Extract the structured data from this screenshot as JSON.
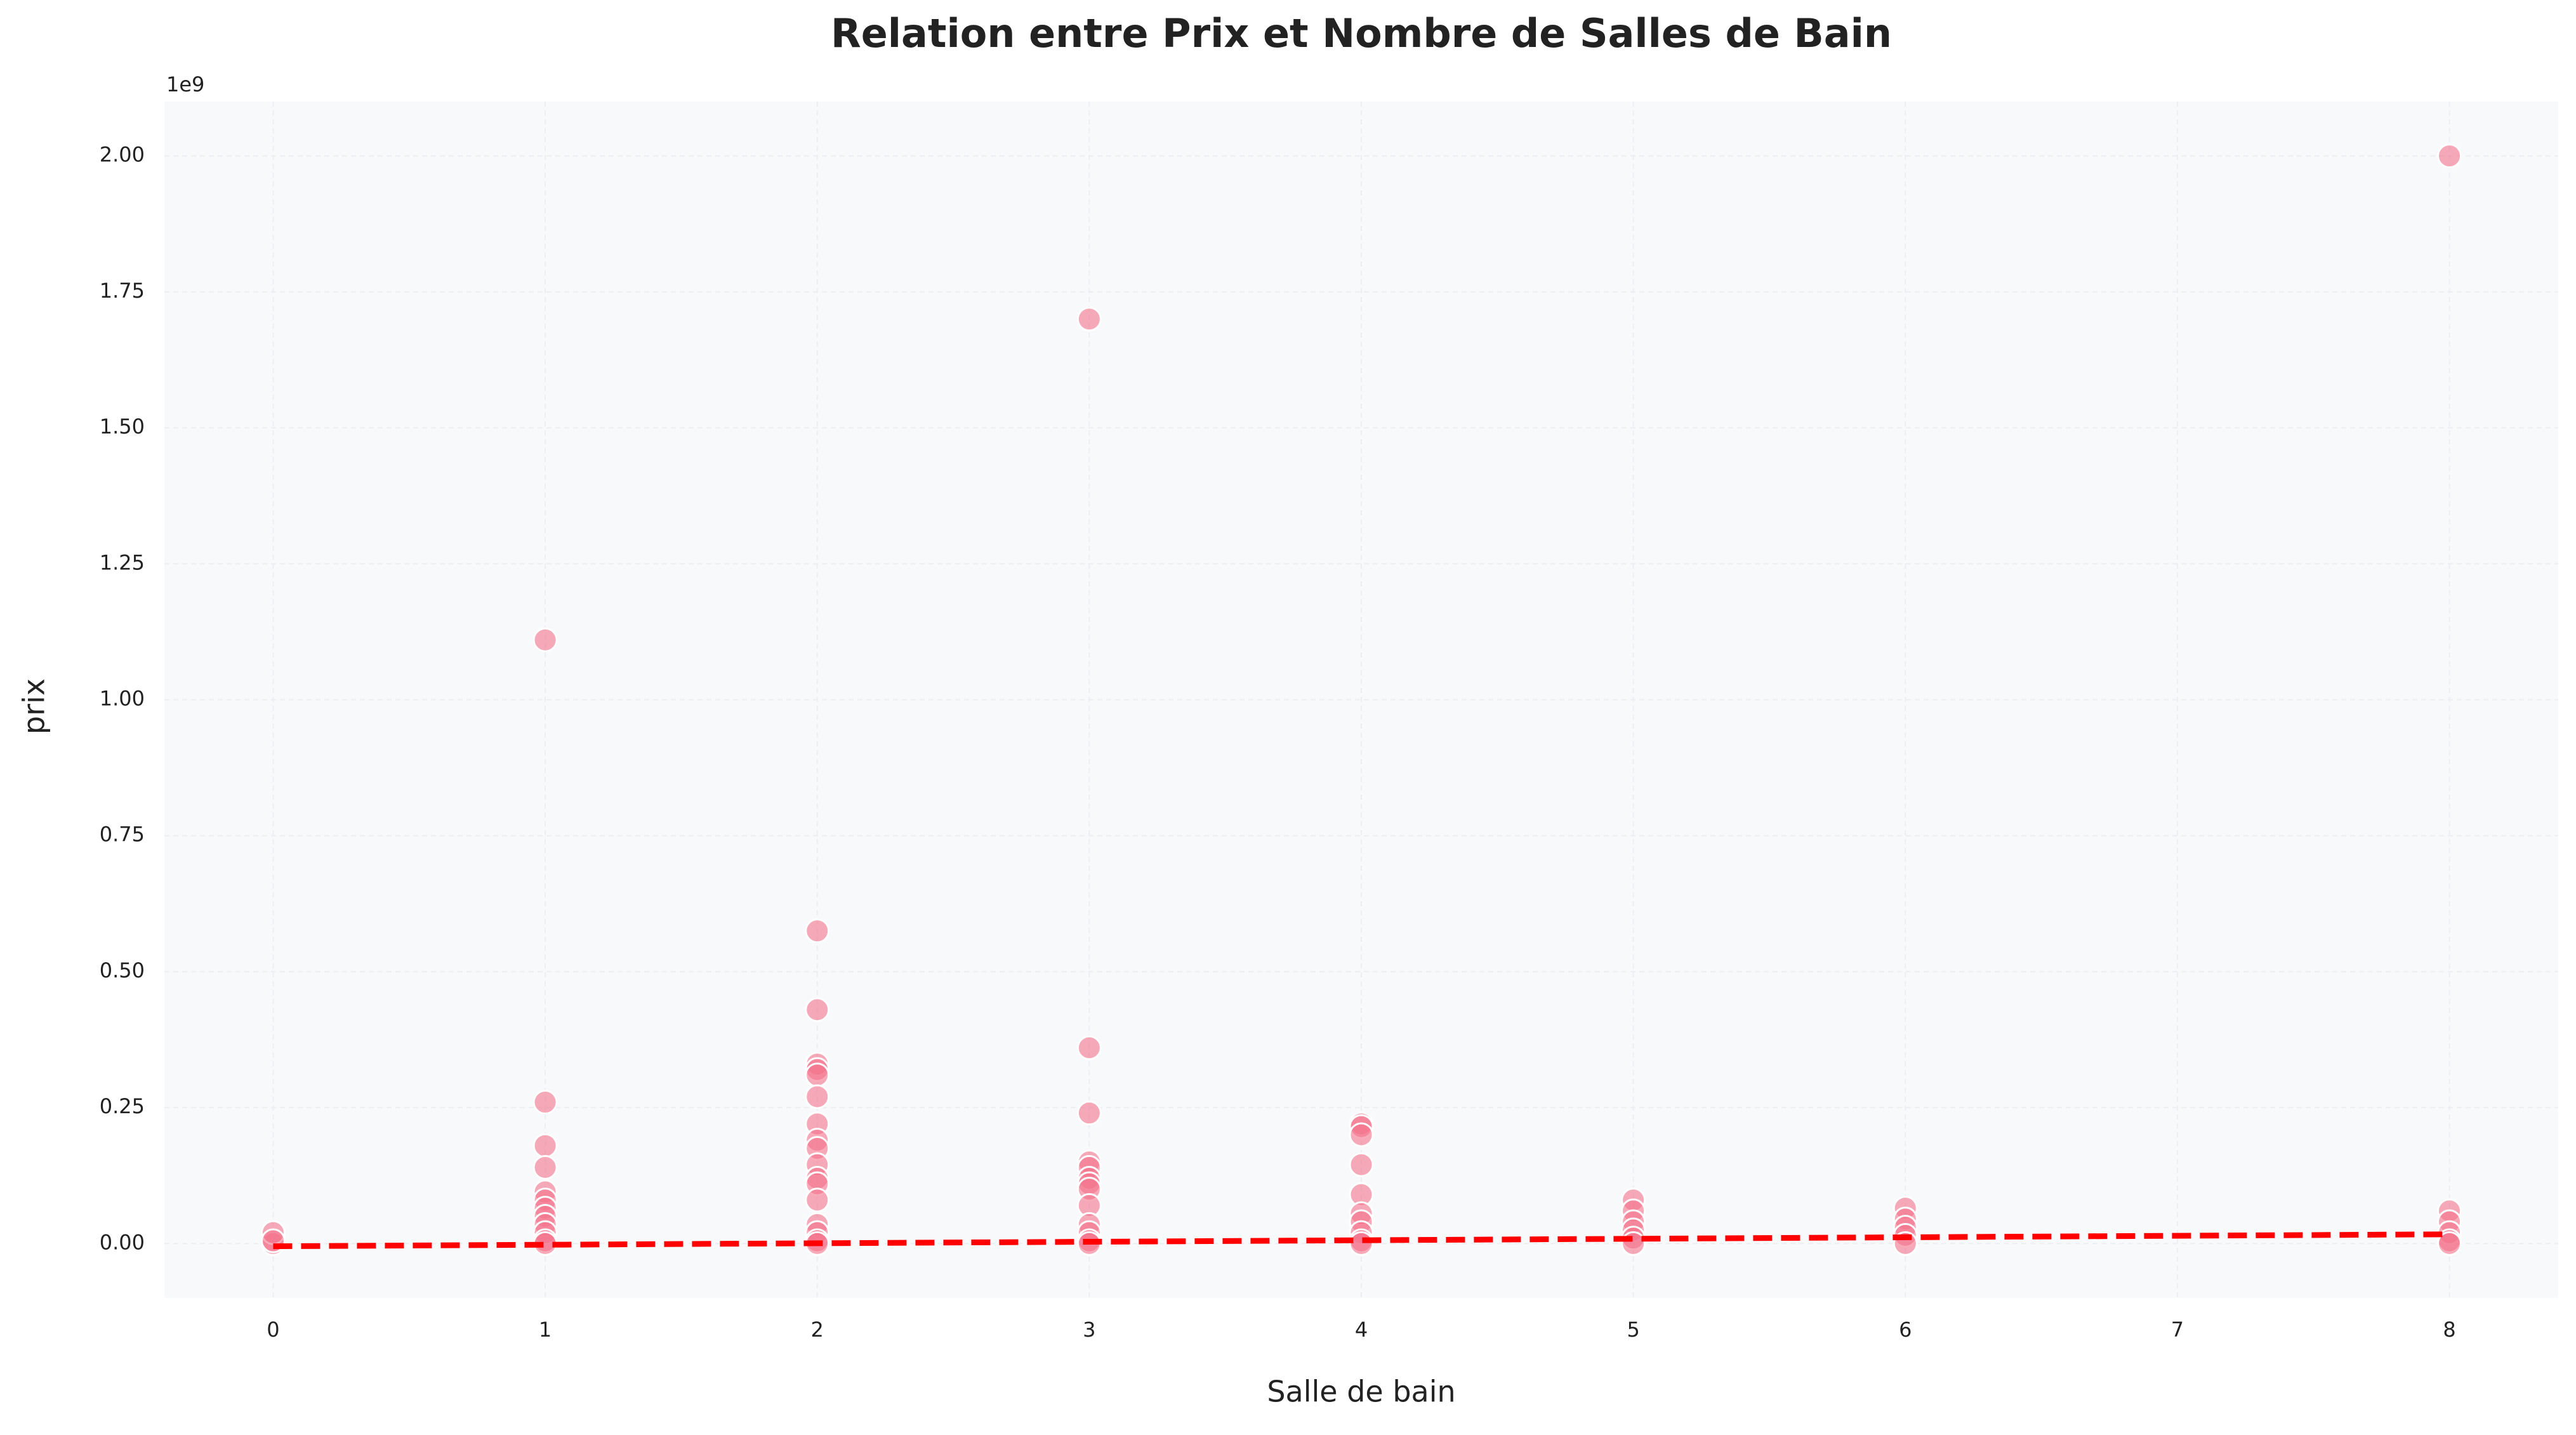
{
  "chart_data": {
    "type": "scatter",
    "title": "Relation entre Prix et Nombre de Salles de Bain",
    "x_label": "Salle de bain",
    "y_label": "prix",
    "y_offset_label": "1e9",
    "x": [
      0,
      0,
      0,
      1,
      1,
      1,
      1,
      1,
      1,
      1,
      1,
      1,
      1,
      1,
      1,
      2,
      2,
      2,
      2,
      2,
      2,
      2,
      2,
      2,
      2,
      2,
      2,
      2,
      2,
      2,
      2,
      2,
      3,
      3,
      3,
      3,
      3,
      3,
      3,
      3,
      3,
      3,
      3,
      3,
      3,
      4,
      4,
      4,
      4,
      4,
      4,
      4,
      4,
      4,
      4,
      5,
      5,
      5,
      5,
      5,
      5,
      6,
      6,
      6,
      6,
      6,
      8,
      8,
      8,
      8,
      8,
      8
    ],
    "y": [
      0,
      0.02,
      0.005,
      1.11,
      0.26,
      0.18,
      0.14,
      0.095,
      0.08,
      0.065,
      0.05,
      0.035,
      0.02,
      0.005,
      0,
      0.575,
      0.43,
      0.33,
      0.32,
      0.31,
      0.27,
      0.22,
      0.19,
      0.175,
      0.145,
      0.12,
      0.11,
      0.08,
      0.035,
      0.02,
      0.005,
      0,
      1.7,
      0.36,
      0.24,
      0.15,
      0.14,
      0.12,
      0.11,
      0.1,
      0.07,
      0.035,
      0.02,
      0.005,
      0,
      0.22,
      0.215,
      0.2,
      0.145,
      0.09,
      0.055,
      0.04,
      0.02,
      0.005,
      0,
      0.08,
      0.06,
      0.04,
      0.025,
      0.01,
      0,
      0.065,
      0.045,
      0.03,
      0.015,
      0,
      2.0,
      0.06,
      0.04,
      0.02,
      0.005,
      0
    ],
    "color": "#f4728a",
    "trend": {
      "x": [
        0,
        8
      ],
      "y": [
        -0.005,
        0.017
      ],
      "color": "#ff0000"
    },
    "xlim": [
      -0.4,
      8.4
    ],
    "xticks": [
      0,
      1,
      2,
      3,
      4,
      5,
      6,
      7,
      8
    ],
    "ylim": [
      -0.1,
      2.1
    ],
    "yticks": [
      {
        "value": 0,
        "label": "0.00"
      },
      {
        "value": 0.25,
        "label": "0.25"
      },
      {
        "value": 0.5,
        "label": "0.50"
      },
      {
        "value": 0.75,
        "label": "0.75"
      },
      {
        "value": 1,
        "label": "1.00"
      },
      {
        "value": 1.25,
        "label": "1.25"
      },
      {
        "value": 1.5,
        "label": "1.50"
      },
      {
        "value": 1.75,
        "label": "1.75"
      },
      {
        "value": 2,
        "label": "2.00"
      }
    ],
    "grid": true
  }
}
